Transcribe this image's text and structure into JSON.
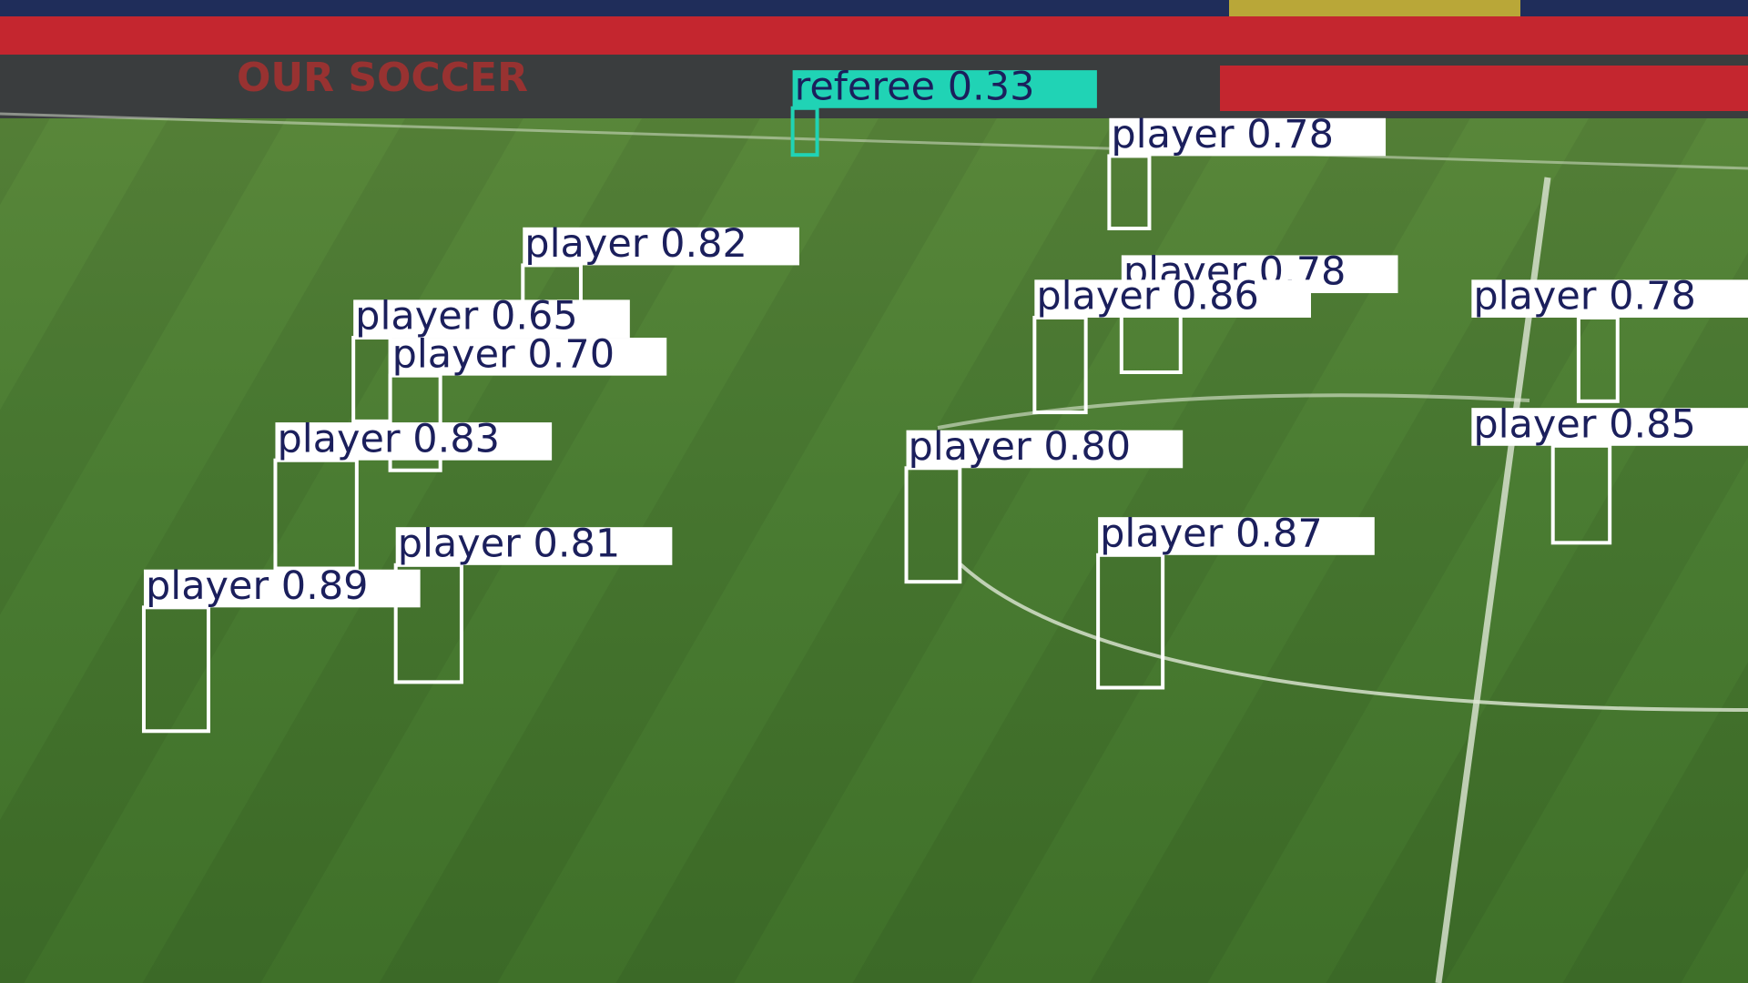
{
  "ad_text": "OUR SOCCER",
  "detections": [
    {
      "label": "referee 0.33"
    },
    {
      "label": "player 0.78"
    },
    {
      "label": "player 0.82"
    },
    {
      "label": "player 0.78"
    },
    {
      "label": "player 0.86"
    },
    {
      "label": "player 0.78"
    },
    {
      "label": "player 0.65"
    },
    {
      "label": "player 0.70"
    },
    {
      "label": "player 0.83"
    },
    {
      "label": "player 0.80"
    },
    {
      "label": "player 0.85"
    },
    {
      "label": "player 0.87"
    },
    {
      "label": "player 0.81"
    },
    {
      "label": "player 0.89"
    }
  ]
}
